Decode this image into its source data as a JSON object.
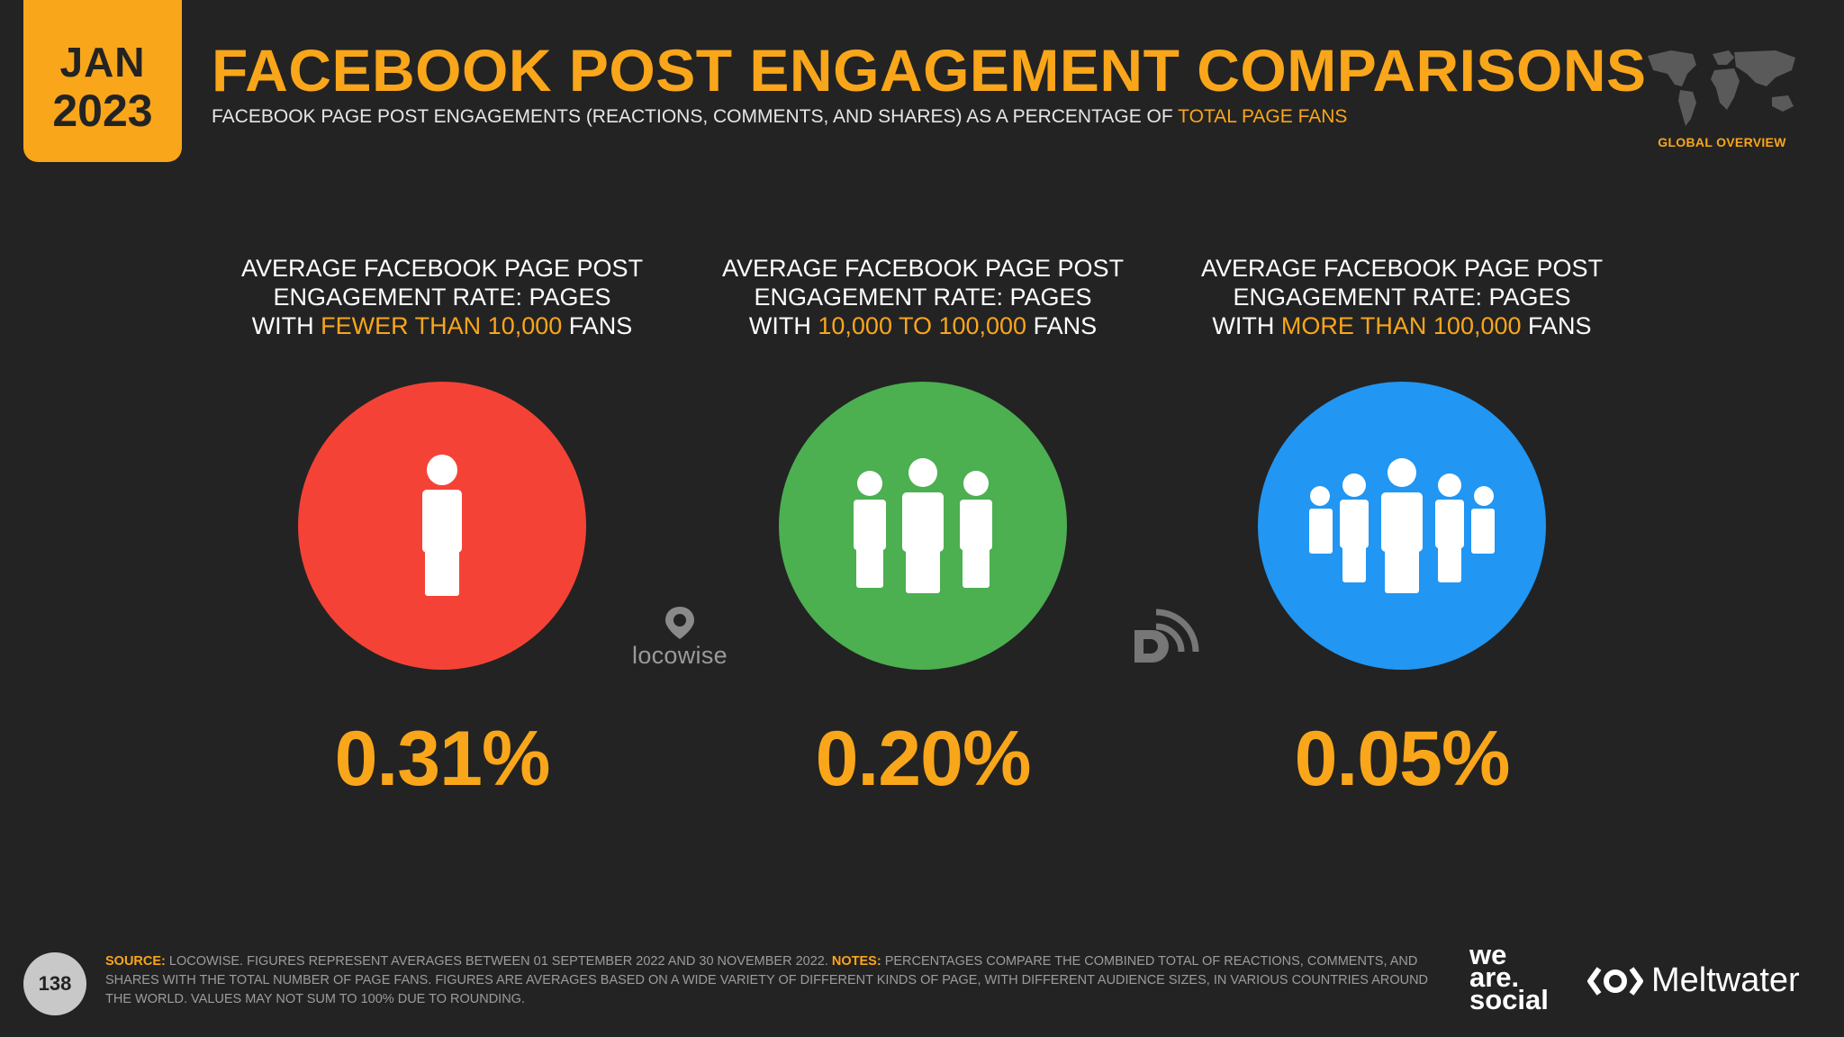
{
  "header": {
    "month": "JAN",
    "year": "2023",
    "title": "FACEBOOK POST ENGAGEMENT COMPARISONS",
    "subtitle_main": "FACEBOOK PAGE POST ENGAGEMENTS (REACTIONS, COMMENTS, AND SHARES) AS A PERCENTAGE OF ",
    "subtitle_highlight": "TOTAL PAGE FANS",
    "region_label": "GLOBAL OVERVIEW"
  },
  "panels": [
    {
      "line1": "AVERAGE FACEBOOK PAGE POST",
      "line2": "ENGAGEMENT RATE: PAGES",
      "prefix": "WITH ",
      "highlight": "FEWER THAN 10,000",
      "suffix": " FANS",
      "value": "0.31%",
      "color": "#f44336",
      "icon": "single-person-icon"
    },
    {
      "line1": "AVERAGE FACEBOOK PAGE POST",
      "line2": "ENGAGEMENT RATE: PAGES",
      "prefix": "WITH ",
      "highlight": "10,000 TO 100,000",
      "suffix": " FANS",
      "value": "0.20%",
      "color": "#4caf50",
      "icon": "three-people-icon"
    },
    {
      "line1": "AVERAGE FACEBOOK PAGE POST",
      "line2": "ENGAGEMENT RATE: PAGES",
      "prefix": "WITH ",
      "highlight": "MORE THAN 100,000",
      "suffix": " FANS",
      "value": "0.05%",
      "color": "#2196f3",
      "icon": "crowd-icon"
    }
  ],
  "sources": {
    "locowise": "locowise"
  },
  "footer": {
    "page_number": "138",
    "source_label": "SOURCE:",
    "source_text": " LOCOWISE. FIGURES REPRESENT AVERAGES BETWEEN 01 SEPTEMBER 2022 AND 30 NOVEMBER 2022. ",
    "notes_label": "NOTES:",
    "notes_text": " PERCENTAGES COMPARE THE COMBINED TOTAL OF REACTIONS, COMMENTS, AND SHARES WITH THE TOTAL NUMBER OF PAGE FANS. FIGURES ARE AVERAGES BASED ON A WIDE VARIETY OF DIFFERENT KINDS OF PAGE, WITH DIFFERENT AUDIENCE SIZES, IN VARIOUS COUNTRIES AROUND THE WORLD. VALUES MAY NOT SUM TO 100% DUE TO ROUNDING.",
    "was_line1": "we",
    "was_line2": "are.",
    "was_line3": "social",
    "meltwater": "Meltwater"
  }
}
